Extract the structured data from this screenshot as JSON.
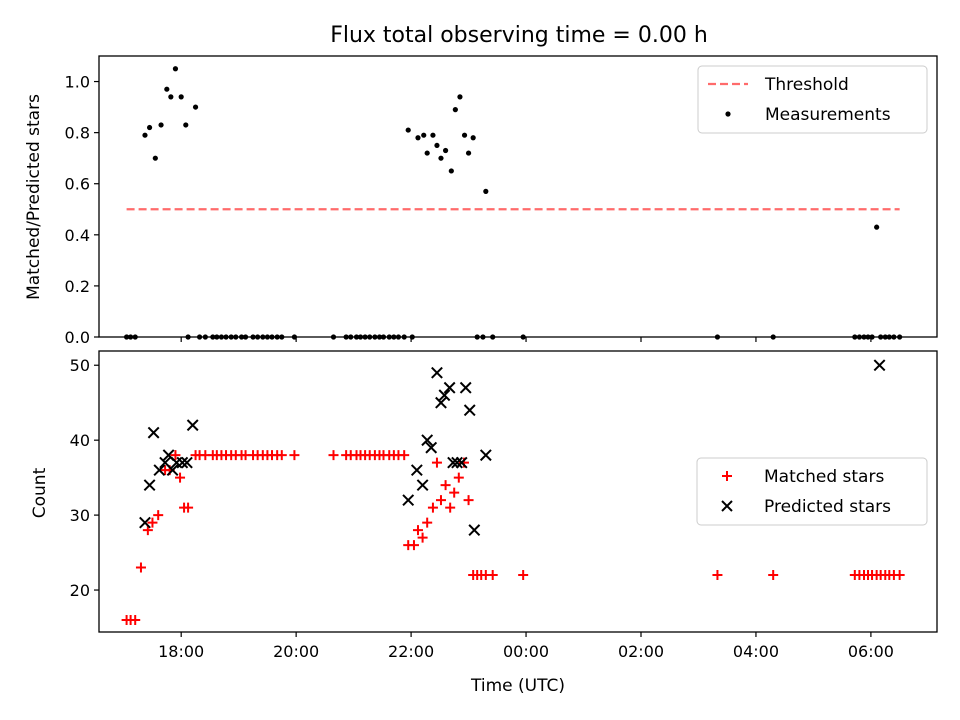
{
  "figure": {
    "title": "Flux total observing time = 0.00 h"
  },
  "chart_data": [
    {
      "type": "scatter",
      "title": "Flux total observing time = 0.00 h",
      "xlabel": "",
      "ylabel": "Matched/Predicted stars",
      "x_unit": "hours since 00:00 UTC of first night",
      "xlim": [
        16.57,
        31.15
      ],
      "ylim": [
        0.0,
        1.1
      ],
      "yticks": [
        "0.0",
        "0.2",
        "0.4",
        "0.6",
        "0.8",
        "1.0"
      ],
      "legend": {
        "position": "upper-right",
        "entries": [
          "Threshold",
          "Measurements"
        ]
      },
      "series": [
        {
          "name": "Threshold",
          "style": "dashed-line",
          "color": "#ff6b6b",
          "x": [
            17.05,
            30.5
          ],
          "y": [
            0.5,
            0.5
          ]
        },
        {
          "name": "Measurements",
          "style": "dot",
          "color": "#000000",
          "points": [
            [
              17.05,
              0.0
            ],
            [
              17.12,
              0.0
            ],
            [
              17.2,
              0.0
            ],
            [
              17.37,
              0.79
            ],
            [
              17.45,
              0.82
            ],
            [
              17.55,
              0.7
            ],
            [
              17.65,
              0.83
            ],
            [
              17.75,
              0.97
            ],
            [
              17.82,
              0.94
            ],
            [
              17.9,
              1.05
            ],
            [
              18.0,
              0.94
            ],
            [
              18.08,
              0.83
            ],
            [
              18.12,
              0.0
            ],
            [
              18.25,
              0.9
            ],
            [
              18.32,
              0.0
            ],
            [
              18.42,
              0.0
            ],
            [
              18.55,
              0.0
            ],
            [
              18.62,
              0.0
            ],
            [
              18.7,
              0.0
            ],
            [
              18.78,
              0.0
            ],
            [
              18.87,
              0.0
            ],
            [
              18.95,
              0.0
            ],
            [
              19.05,
              0.0
            ],
            [
              19.12,
              0.0
            ],
            [
              19.25,
              0.0
            ],
            [
              19.33,
              0.0
            ],
            [
              19.42,
              0.0
            ],
            [
              19.5,
              0.0
            ],
            [
              19.58,
              0.0
            ],
            [
              19.67,
              0.0
            ],
            [
              19.75,
              0.0
            ],
            [
              19.97,
              0.0
            ],
            [
              20.65,
              0.0
            ],
            [
              20.87,
              0.0
            ],
            [
              20.95,
              0.0
            ],
            [
              21.05,
              0.0
            ],
            [
              21.12,
              0.0
            ],
            [
              21.2,
              0.0
            ],
            [
              21.28,
              0.0
            ],
            [
              21.37,
              0.0
            ],
            [
              21.45,
              0.0
            ],
            [
              21.52,
              0.0
            ],
            [
              21.62,
              0.0
            ],
            [
              21.7,
              0.0
            ],
            [
              21.78,
              0.0
            ],
            [
              21.88,
              0.0
            ],
            [
              21.95,
              0.81
            ],
            [
              22.02,
              0.0
            ],
            [
              22.12,
              0.78
            ],
            [
              22.22,
              0.79
            ],
            [
              22.28,
              0.72
            ],
            [
              22.38,
              0.79
            ],
            [
              22.45,
              0.75
            ],
            [
              22.52,
              0.7
            ],
            [
              22.6,
              0.73
            ],
            [
              22.7,
              0.65
            ],
            [
              22.77,
              0.89
            ],
            [
              22.85,
              0.94
            ],
            [
              22.93,
              0.79
            ],
            [
              23.0,
              0.72
            ],
            [
              23.08,
              0.78
            ],
            [
              23.15,
              0.0
            ],
            [
              23.25,
              0.0
            ],
            [
              23.3,
              0.57
            ],
            [
              23.42,
              0.0
            ],
            [
              23.95,
              0.0
            ],
            [
              27.33,
              0.0
            ],
            [
              28.3,
              0.0
            ],
            [
              29.72,
              0.0
            ],
            [
              29.8,
              0.0
            ],
            [
              29.88,
              0.0
            ],
            [
              29.95,
              0.0
            ],
            [
              30.02,
              0.0
            ],
            [
              30.1,
              0.43
            ],
            [
              30.17,
              0.0
            ],
            [
              30.25,
              0.0
            ],
            [
              30.32,
              0.0
            ],
            [
              30.4,
              0.0
            ],
            [
              30.5,
              0.0
            ]
          ]
        }
      ]
    },
    {
      "type": "scatter",
      "title": "",
      "xlabel": "Time (UTC)",
      "ylabel": "Count",
      "x_unit": "hours since 00:00 UTC of first night",
      "xlim": [
        16.57,
        31.15
      ],
      "ylim": [
        14.4,
        51.9
      ],
      "yticks": [
        "20",
        "30",
        "40",
        "50"
      ],
      "xticks": [
        {
          "x": 18,
          "label": "18:00"
        },
        {
          "x": 20,
          "label": "20:00"
        },
        {
          "x": 22,
          "label": "22:00"
        },
        {
          "x": 24,
          "label": "00:00"
        },
        {
          "x": 26,
          "label": "02:00"
        },
        {
          "x": 28,
          "label": "04:00"
        },
        {
          "x": 30,
          "label": "06:00"
        }
      ],
      "legend": {
        "position": "center-right",
        "entries": [
          "Matched stars",
          "Predicted stars"
        ]
      },
      "series": [
        {
          "name": "Matched stars",
          "style": "plus",
          "color": "#ff0000",
          "points": [
            [
              17.05,
              16
            ],
            [
              17.12,
              16
            ],
            [
              17.2,
              16
            ],
            [
              17.3,
              23
            ],
            [
              17.42,
              28
            ],
            [
              17.5,
              29
            ],
            [
              17.6,
              30
            ],
            [
              17.72,
              36
            ],
            [
              17.8,
              36
            ],
            [
              17.9,
              38
            ],
            [
              17.98,
              35
            ],
            [
              18.05,
              31
            ],
            [
              18.12,
              31
            ],
            [
              18.25,
              38
            ],
            [
              18.32,
              38
            ],
            [
              18.42,
              38
            ],
            [
              18.55,
              38
            ],
            [
              18.62,
              38
            ],
            [
              18.7,
              38
            ],
            [
              18.78,
              38
            ],
            [
              18.87,
              38
            ],
            [
              18.95,
              38
            ],
            [
              19.05,
              38
            ],
            [
              19.12,
              38
            ],
            [
              19.25,
              38
            ],
            [
              19.33,
              38
            ],
            [
              19.42,
              38
            ],
            [
              19.5,
              38
            ],
            [
              19.58,
              38
            ],
            [
              19.67,
              38
            ],
            [
              19.75,
              38
            ],
            [
              19.97,
              38
            ],
            [
              20.65,
              38
            ],
            [
              20.87,
              38
            ],
            [
              20.95,
              38
            ],
            [
              21.05,
              38
            ],
            [
              21.12,
              38
            ],
            [
              21.2,
              38
            ],
            [
              21.28,
              38
            ],
            [
              21.37,
              38
            ],
            [
              21.45,
              38
            ],
            [
              21.52,
              38
            ],
            [
              21.62,
              38
            ],
            [
              21.7,
              38
            ],
            [
              21.78,
              38
            ],
            [
              21.88,
              38
            ],
            [
              21.95,
              26
            ],
            [
              22.05,
              26
            ],
            [
              22.12,
              28
            ],
            [
              22.2,
              27
            ],
            [
              22.28,
              29
            ],
            [
              22.38,
              31
            ],
            [
              22.45,
              37
            ],
            [
              22.52,
              32
            ],
            [
              22.6,
              34
            ],
            [
              22.68,
              31
            ],
            [
              22.75,
              33
            ],
            [
              22.83,
              35
            ],
            [
              22.92,
              37
            ],
            [
              23.0,
              32
            ],
            [
              23.08,
              22
            ],
            [
              23.15,
              22
            ],
            [
              23.22,
              22
            ],
            [
              23.3,
              22
            ],
            [
              23.42,
              22
            ],
            [
              23.95,
              22
            ],
            [
              27.33,
              22
            ],
            [
              28.3,
              22
            ],
            [
              29.72,
              22
            ],
            [
              29.8,
              22
            ],
            [
              29.88,
              22
            ],
            [
              29.95,
              22
            ],
            [
              30.02,
              22
            ],
            [
              30.1,
              22
            ],
            [
              30.17,
              22
            ],
            [
              30.25,
              22
            ],
            [
              30.32,
              22
            ],
            [
              30.4,
              22
            ],
            [
              30.5,
              22
            ]
          ]
        },
        {
          "name": "Predicted stars",
          "style": "x",
          "color": "#000000",
          "points": [
            [
              17.37,
              29
            ],
            [
              17.45,
              34
            ],
            [
              17.52,
              41
            ],
            [
              17.62,
              36
            ],
            [
              17.72,
              37
            ],
            [
              17.78,
              38
            ],
            [
              17.85,
              36
            ],
            [
              17.92,
              37
            ],
            [
              18.02,
              37
            ],
            [
              18.1,
              37
            ],
            [
              18.2,
              42
            ],
            [
              21.95,
              32
            ],
            [
              22.1,
              36
            ],
            [
              22.2,
              34
            ],
            [
              22.28,
              40
            ],
            [
              22.35,
              39
            ],
            [
              22.45,
              49
            ],
            [
              22.52,
              45
            ],
            [
              22.58,
              46
            ],
            [
              22.67,
              47
            ],
            [
              22.73,
              37
            ],
            [
              22.8,
              37
            ],
            [
              22.88,
              37
            ],
            [
              22.95,
              47
            ],
            [
              23.02,
              44
            ],
            [
              23.1,
              28
            ],
            [
              23.3,
              38
            ],
            [
              30.15,
              50
            ]
          ]
        }
      ]
    }
  ]
}
